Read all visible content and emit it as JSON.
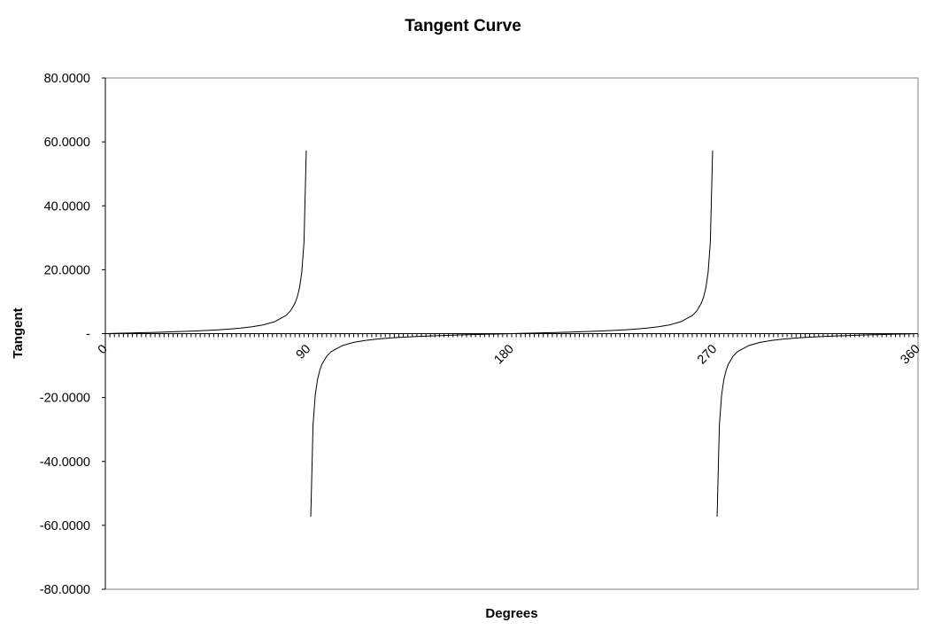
{
  "chart_data": {
    "type": "line",
    "title": "Tangent Curve",
    "xlabel": "Degrees",
    "ylabel": "Tangent",
    "xlim": [
      0,
      360
    ],
    "ylim": [
      -80,
      80
    ],
    "x_tick_labels": [
      "0",
      "90",
      "180",
      "270",
      "360"
    ],
    "x_tick_label_values": [
      0,
      90,
      180,
      270,
      360
    ],
    "y_tick_labels": [
      "80.0000",
      "60.0000",
      "40.0000",
      "20.0000",
      "-",
      "-20.0000",
      "-40.0000",
      "-60.0000",
      "-80.0000"
    ],
    "y_tick_values": [
      80,
      60,
      40,
      20,
      0,
      -20,
      -40,
      -60,
      -80
    ],
    "x_minor_tick_step": 2,
    "grid": false,
    "legend": "none",
    "line_color": "#000000",
    "series": [
      {
        "x": [
          0,
          5,
          10,
          15,
          20,
          25,
          30,
          35,
          40,
          45,
          50,
          55,
          60,
          65,
          70,
          75,
          80,
          82,
          84,
          85,
          86,
          87,
          88,
          89,
          91,
          92,
          93,
          94,
          95,
          96,
          98,
          100,
          105,
          110,
          115,
          120,
          125,
          130,
          135,
          140,
          145,
          150,
          155,
          160,
          165,
          170,
          175,
          180,
          185,
          190,
          195,
          200,
          205,
          210,
          215,
          220,
          225,
          230,
          235,
          240,
          245,
          250,
          255,
          260,
          262,
          264,
          265,
          266,
          267,
          268,
          269,
          271,
          272,
          273,
          274,
          275,
          276,
          278,
          280,
          285,
          290,
          295,
          300,
          305,
          310,
          315,
          320,
          325,
          330,
          335,
          340,
          345,
          350,
          355,
          360
        ],
        "y": [
          0,
          0.0875,
          0.1763,
          0.2679,
          0.364,
          0.4663,
          0.5774,
          0.7002,
          0.8391,
          1,
          1.1918,
          1.4281,
          1.7321,
          2.1445,
          2.7475,
          3.7321,
          5.6713,
          7.1154,
          9.5144,
          11.4301,
          14.3007,
          19.0811,
          28.6363,
          57.29,
          -57.29,
          -28.6363,
          -19.0811,
          -14.3007,
          -11.4301,
          -9.5144,
          -7.1154,
          -5.6713,
          -3.7321,
          -2.7475,
          -2.1445,
          -1.7321,
          -1.4281,
          -1.1918,
          -1,
          -0.8391,
          -0.7002,
          -0.5774,
          -0.4663,
          -0.364,
          -0.2679,
          -0.1763,
          -0.0875,
          0,
          0.0875,
          0.1763,
          0.2679,
          0.364,
          0.4663,
          0.5774,
          0.7002,
          0.8391,
          1,
          1.1918,
          1.4281,
          1.7321,
          2.1445,
          2.7475,
          3.7321,
          5.6713,
          7.1154,
          9.5144,
          11.4301,
          14.3007,
          19.0811,
          28.6363,
          57.29,
          -57.29,
          -28.6363,
          -19.0811,
          -14.3007,
          -11.4301,
          -9.5144,
          -7.1154,
          -5.6713,
          -3.7321,
          -2.7475,
          -2.1445,
          -1.7321,
          -1.4281,
          -1.1918,
          -1,
          -0.8391,
          -0.7002,
          -0.5774,
          -0.4663,
          -0.364,
          -0.2679,
          -0.1763,
          -0.0875,
          0
        ]
      }
    ]
  }
}
